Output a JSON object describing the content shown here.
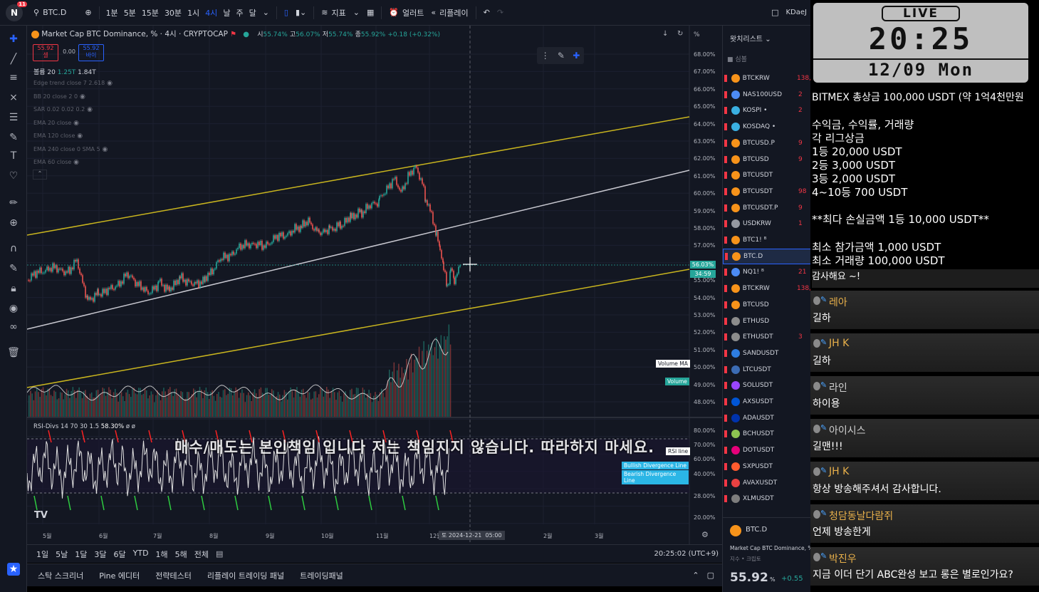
{
  "topbar": {
    "symbol": "BTC.D",
    "badge": "11",
    "intervals": [
      "1분",
      "5분",
      "15분",
      "30분",
      "1시",
      "4시",
      "날",
      "주",
      "달"
    ],
    "active_interval": "4시",
    "indicators_label": "지표",
    "alert_label": "얼러트",
    "replay_label": "리플레이",
    "user": "KDaeJ"
  },
  "legend": {
    "title": "Market Cap BTC Dominance, % · 4시 · CRYPTOCAP",
    "o_label": "시",
    "o": "55.74%",
    "h_label": "고",
    "h": "56.07%",
    "l_label": "저",
    "l": "55.74%",
    "c_label": "종",
    "c": "55.92%",
    "change": "+0.18 (+0.32%)",
    "sell_price": "55.92",
    "sell_label": "셀",
    "spread": "0.00",
    "buy_price": "55.92",
    "buy_label": "바이",
    "volume_label": "볼륨 20",
    "volume_a": "1.25T",
    "volume_b": "1.84T",
    "indicators": [
      "Edge trend close 7 2.618",
      "BB 20 close 2 0",
      "SAR 0.02 0.02 0.2",
      "EMA 20 close",
      "EMA 120 close",
      "EMA 240 close 0 SMA 5",
      "EMA 60 close"
    ]
  },
  "price_scale": {
    "unit": "%",
    "ticks": [
      "68.00%",
      "67.00%",
      "66.00%",
      "65.00%",
      "64.00%",
      "63.00%",
      "62.00%",
      "61.00%",
      "60.00%",
      "59.00%",
      "58.00%",
      "57.00%",
      "56.00%",
      "55.00%",
      "54.00%",
      "53.00%",
      "52.00%",
      "51.00%",
      "50.00%",
      "49.00%",
      "48.00%"
    ],
    "current": "56.03%",
    "current_time": "34:59",
    "volume_ma_label": "Volume MA",
    "volume_label": "Volume",
    "rsi_ticks": [
      "80.00%",
      "70.00%",
      "60.00%",
      "50.00%",
      "40.00%",
      "28.00%",
      "20.00%"
    ],
    "rsi_line_label": "RSI line",
    "bullish_label": "Bullish Divergence Line",
    "bearish_label": "Bearish Divergence Line"
  },
  "rsi": {
    "title": "RSI-Divs 14 70 30 1.5",
    "value": "58.30%",
    "extra": "ø ø"
  },
  "time_axis": {
    "months": [
      "5월",
      "6월",
      "7월",
      "8월",
      "9월",
      "10월",
      "11월",
      "12월",
      "2월",
      "3월"
    ],
    "cursor_date": "토 2024-12-21",
    "cursor_time": "05:00"
  },
  "range_bar": {
    "ranges": [
      "1일",
      "5날",
      "1달",
      "3달",
      "6달",
      "YTD",
      "1해",
      "5해",
      "전체"
    ],
    "clock": "20:25:02 (UTC+9)"
  },
  "panel_bar": {
    "tabs": [
      "스탁 스크리너",
      "Pine 에디터",
      "전략테스터",
      "리플레이 트레이딩 패널",
      "트레이딩패널"
    ]
  },
  "watchlist": {
    "title": "왓치리스트",
    "column": "심볼",
    "rows": [
      {
        "sym": "BTCKRW",
        "val": "138,",
        "color": "#f7931a"
      },
      {
        "sym": "NAS100USD",
        "val": "2",
        "color": "#4c8bf5"
      },
      {
        "sym": "KOSPI •",
        "val": "2",
        "color": "#3ab0e2"
      },
      {
        "sym": "KOSDAQ •",
        "val": "",
        "color": "#3ab0e2"
      },
      {
        "sym": "BTCUSD.P",
        "val": "9",
        "color": "#f7931a"
      },
      {
        "sym": "BTCUSD",
        "val": "9",
        "color": "#f7931a"
      },
      {
        "sym": "BTCUSDT",
        "val": "",
        "color": "#f7931a"
      },
      {
        "sym": "BTCUSDT",
        "val": "98",
        "color": "#f7931a"
      },
      {
        "sym": "BTCUSDT.P",
        "val": "9",
        "color": "#f7931a"
      },
      {
        "sym": "USDKRW",
        "val": "1",
        "color": "#9598a1"
      },
      {
        "sym": "BTC1! ᴮ",
        "val": "",
        "color": "#f7931a"
      },
      {
        "sym": "BTC.D",
        "val": "",
        "color": "#f7931a"
      },
      {
        "sym": "NQ1! ᴮ",
        "val": "21",
        "color": "#4c8bf5"
      },
      {
        "sym": "BTCKRW",
        "val": "138,",
        "color": "#f7931a"
      },
      {
        "sym": "BTCUSD",
        "val": "",
        "color": "#f7931a"
      },
      {
        "sym": "ETHUSD",
        "val": "",
        "color": "#8c8c8c"
      },
      {
        "sym": "ETHUSDT",
        "val": "3",
        "color": "#8c8c8c"
      },
      {
        "sym": "SANDUSDT",
        "val": "",
        "color": "#2e7de1"
      },
      {
        "sym": "LTCUSDT",
        "val": "",
        "color": "#3c6cb4"
      },
      {
        "sym": "SOLUSDT",
        "val": "",
        "color": "#9945ff"
      },
      {
        "sym": "AXSUSDT",
        "val": "",
        "color": "#0055d5"
      },
      {
        "sym": "ADAUSDT",
        "val": "",
        "color": "#0033ad"
      },
      {
        "sym": "BCHUSDT",
        "val": "",
        "color": "#8dc351"
      },
      {
        "sym": "DOTUSDT",
        "val": "",
        "color": "#e6007a"
      },
      {
        "sym": "SXPUSDT",
        "val": "",
        "color": "#ff5b2e"
      },
      {
        "sym": "AVAXUSDT",
        "val": "",
        "color": "#e84142"
      },
      {
        "sym": "XLMUSDT",
        "val": "",
        "color": "#7d7d7d"
      }
    ],
    "detail_symbol": "BTC.D",
    "detail_name": "Market Cap BTC Dominance, %",
    "detail_type": "지수 • 크립토",
    "detail_price": "55.92",
    "detail_unit": "%",
    "detail_change": "+0.55"
  },
  "stream": {
    "live": "LIVE",
    "time": "20:25",
    "date": "12/09 Mon",
    "lines": [
      "BITMEX 총상금 100,000 USDT (약 1억4천만원",
      "수익금, 수익률, 거래량",
      "각 리그상금",
      "1등 20,000 USDT",
      "2등    3,000 USDT",
      "3등    2,000 USDT",
      "4~10등 700 USDT",
      "**최다 손실금액 1등 10,000 USDT**",
      "최소 참가금액 1,000 USDT",
      "최소 거래량 100,000 USDT"
    ],
    "chats": [
      {
        "name": "레아",
        "msg": "길하",
        "color": "#e8b04a"
      },
      {
        "name": "JH K",
        "msg": "길하",
        "color": "#e8b04a"
      },
      {
        "name": "라인",
        "msg": "하이용",
        "color": "#cfcfcf"
      },
      {
        "name": "아이시스",
        "msg": "길맨!!!",
        "color": "#cfcfcf"
      },
      {
        "name": "JH K",
        "msg": "항상 방송해주셔서 감사합니다.",
        "color": "#e8b04a"
      },
      {
        "name": "청담동날다람쥐",
        "msg": "언제 방송한게",
        "color": "#e8b04a"
      },
      {
        "name": "박진우",
        "msg": "지금 이더 단기 ABC완성 보고 롱은 별로인가요?",
        "color": "#e8b04a"
      }
    ],
    "partial_msg": "감사해요 ~!"
  },
  "subtitle": "매수/매도는 본인책임 입니다 저는 책임지지 않습니다. 따라하지 마세요.",
  "colors": {
    "background": "#131722",
    "up": "#26a69a",
    "down": "#ef5350",
    "channel": "#c9b51e",
    "midline": "#c8c8d0",
    "accent": "#2962ff"
  }
}
